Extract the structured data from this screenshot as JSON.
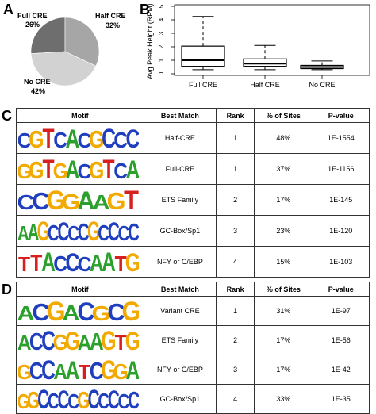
{
  "panels": {
    "a": "A",
    "b": "B",
    "c": "C",
    "d": "D"
  },
  "pie": {
    "type": "pie",
    "slices": [
      {
        "label": "Full CRE",
        "pct_label": "26%",
        "value": 26,
        "color": "#6e6e6e"
      },
      {
        "label": "Half CRE",
        "pct_label": "32%",
        "value": 32,
        "color": "#a6a6a6"
      },
      {
        "label": "No CRE",
        "pct_label": "42%",
        "value": 42,
        "color": "#d2d2d2"
      }
    ]
  },
  "chart_data": {
    "type": "boxplot",
    "ylabel": "Avg Peak Height (RPM)",
    "ylim": [
      0,
      5
    ],
    "yticks": [
      "0",
      "1",
      "2",
      "3",
      "4",
      "5"
    ],
    "categories": [
      "Full CRE",
      "Half CRE",
      "No CRE"
    ],
    "boxes": [
      {
        "name": "Full CRE",
        "whisker_low": 0.3,
        "q1": 0.55,
        "median": 1.0,
        "q3": 2.05,
        "whisker_high": 4.25
      },
      {
        "name": "Half CRE",
        "whisker_low": 0.3,
        "q1": 0.55,
        "median": 0.75,
        "q3": 1.1,
        "whisker_high": 2.1
      },
      {
        "name": "No CRE",
        "whisker_low": 0.3,
        "q1": 0.38,
        "median": 0.5,
        "q3": 0.62,
        "whisker_high": 0.95
      }
    ]
  },
  "table_c": {
    "headers": [
      "Motif",
      "Best Match",
      "Rank",
      "% of Sites",
      "P-value"
    ],
    "rows": [
      {
        "motif": "CGTCACGCCC",
        "best_match": "Half-CRE",
        "rank": "1",
        "pct": "48%",
        "pvalue": "1E-1554"
      },
      {
        "motif": "GGTGACGTCA",
        "best_match": "Full-CRE",
        "rank": "1",
        "pct": "37%",
        "pvalue": "1E-1156"
      },
      {
        "motif": "CCGGAAGT",
        "best_match": "ETS Family",
        "rank": "2",
        "pct": "17%",
        "pvalue": "1E-145"
      },
      {
        "motif": "AAGCCCCGCCCC",
        "best_match": "GC-Box/Sp1",
        "rank": "3",
        "pct": "23%",
        "pvalue": "1E-120"
      },
      {
        "motif": "TTACCCAATG",
        "best_match": "NFY or C/EBP",
        "rank": "4",
        "pct": "15%",
        "pvalue": "1E-103"
      }
    ]
  },
  "table_d": {
    "headers": [
      "Motif",
      "Best Match",
      "Rank",
      "% of Sites",
      "P-value"
    ],
    "rows": [
      {
        "motif": "ACGACGCG",
        "best_match": "Variant CRE",
        "rank": "1",
        "pct": "31%",
        "pvalue": "1E-97"
      },
      {
        "motif": "ACCGGAAGTG",
        "best_match": "ETS Family",
        "rank": "2",
        "pct": "17%",
        "pvalue": "1E-56"
      },
      {
        "motif": "GCCAATCGGA",
        "best_match": "NFY or C/EBP",
        "rank": "3",
        "pct": "17%",
        "pvalue": "1E-42"
      },
      {
        "motif": "GGCCCCGCCCCC",
        "best_match": "GC-Box/Sp1",
        "rank": "4",
        "pct": "33%",
        "pvalue": "1E-35"
      }
    ]
  },
  "base_colors": {
    "A": "#2ca02c",
    "C": "#1f3fbf",
    "G": "#f2a900",
    "T": "#d62020"
  }
}
